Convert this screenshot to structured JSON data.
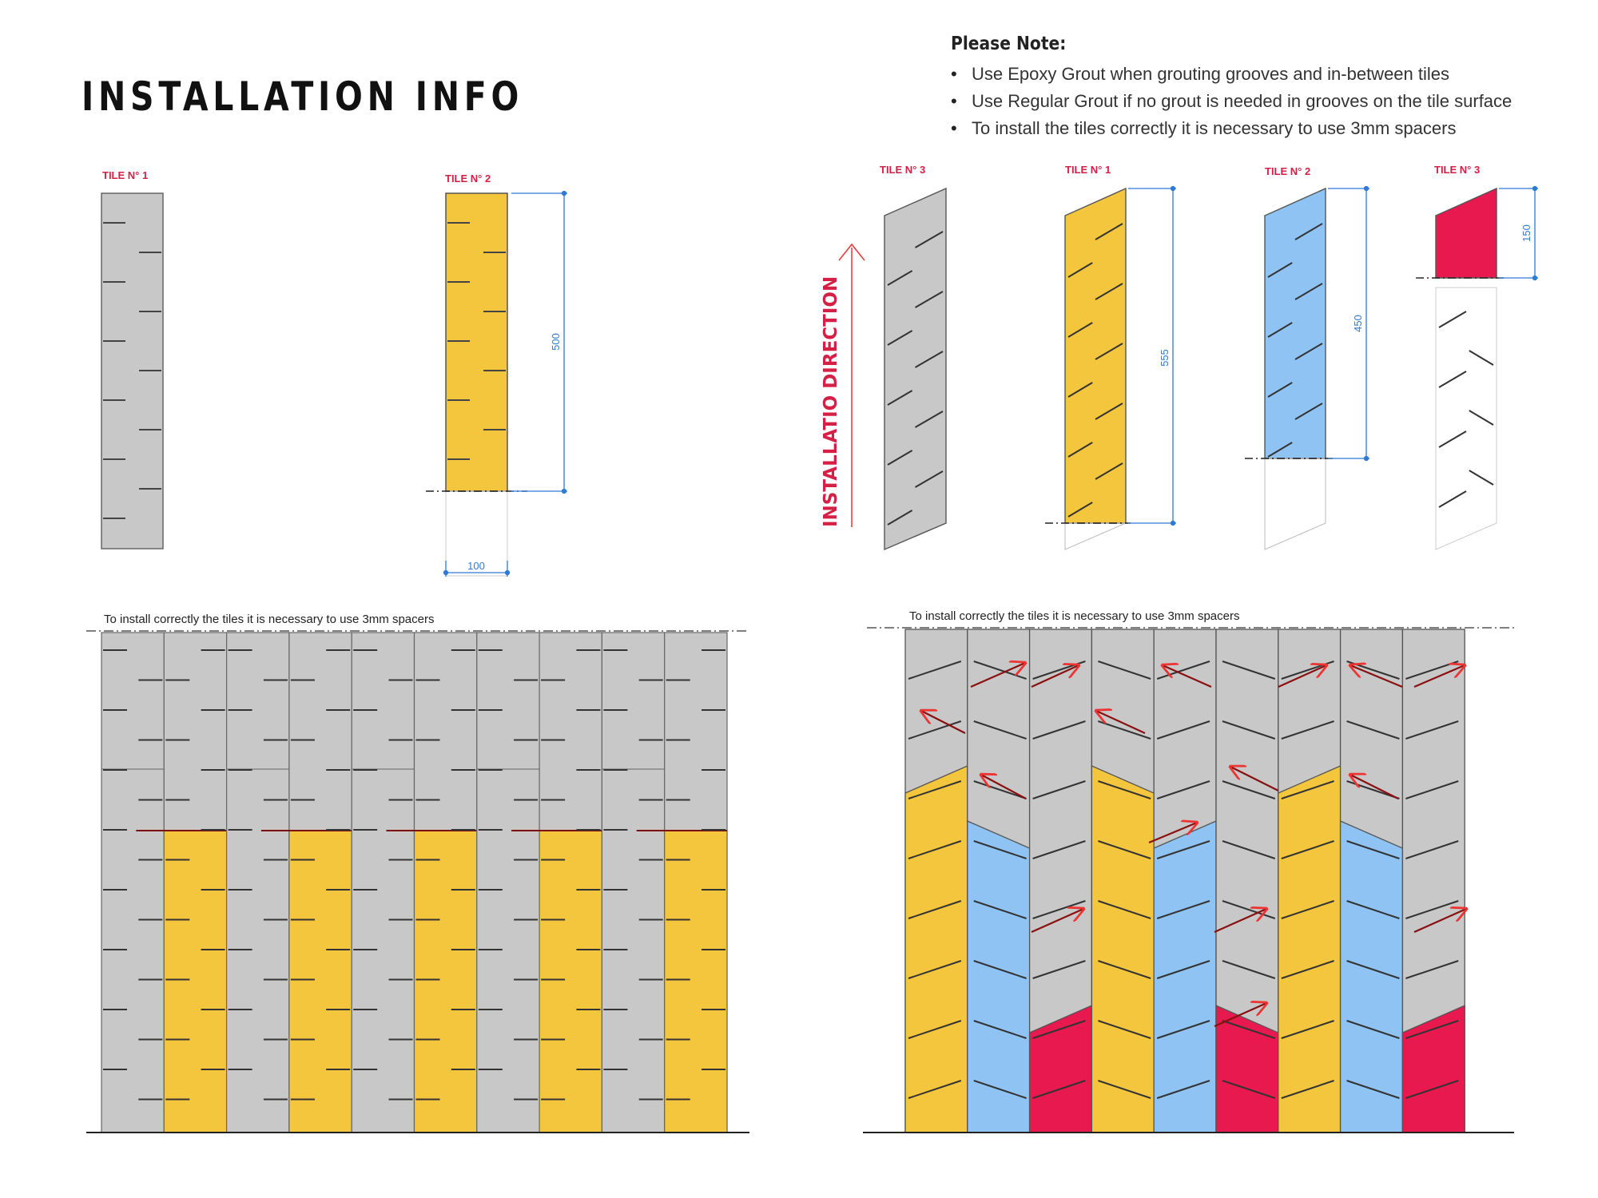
{
  "page": {
    "title": "INSTALLATION INFO"
  },
  "note": {
    "heading": "Please Note:",
    "items": [
      "Use Epoxy Grout when grouting grooves and in-between tiles",
      "Use Regular Grout if no grout is needed in grooves on the tile surface",
      "To install the tiles correctly it is necessary to use 3mm spacers"
    ]
  },
  "diagram_left": {
    "tile1_label": "TILE N° 1",
    "tile2_label": "TILE N° 2",
    "dim_height": "500",
    "dim_width": "100",
    "wall_caption": "To install correctly the tiles it is necessary to use 3mm spacers"
  },
  "diagram_right": {
    "direction_label": "INSTALLATIO DIRECTION",
    "tile3_label": "TILE N° 3",
    "tile1_label": "TILE N° 1",
    "tile2_label": "TILE N° 2",
    "tile3b_label": "TILE N° 3",
    "dim_tile1": "555",
    "dim_tile2": "450",
    "dim_tile3": "150",
    "wall_caption": "To install correctly the tiles it is necessary to use 3mm spacers"
  },
  "colors": {
    "grey": "#c8c8c8",
    "yellow": "#f4c63d",
    "blue": "#8fc3f3",
    "red": "#e8194f",
    "label_red": "#d61f45",
    "dim_blue": "#2d7bd6"
  }
}
